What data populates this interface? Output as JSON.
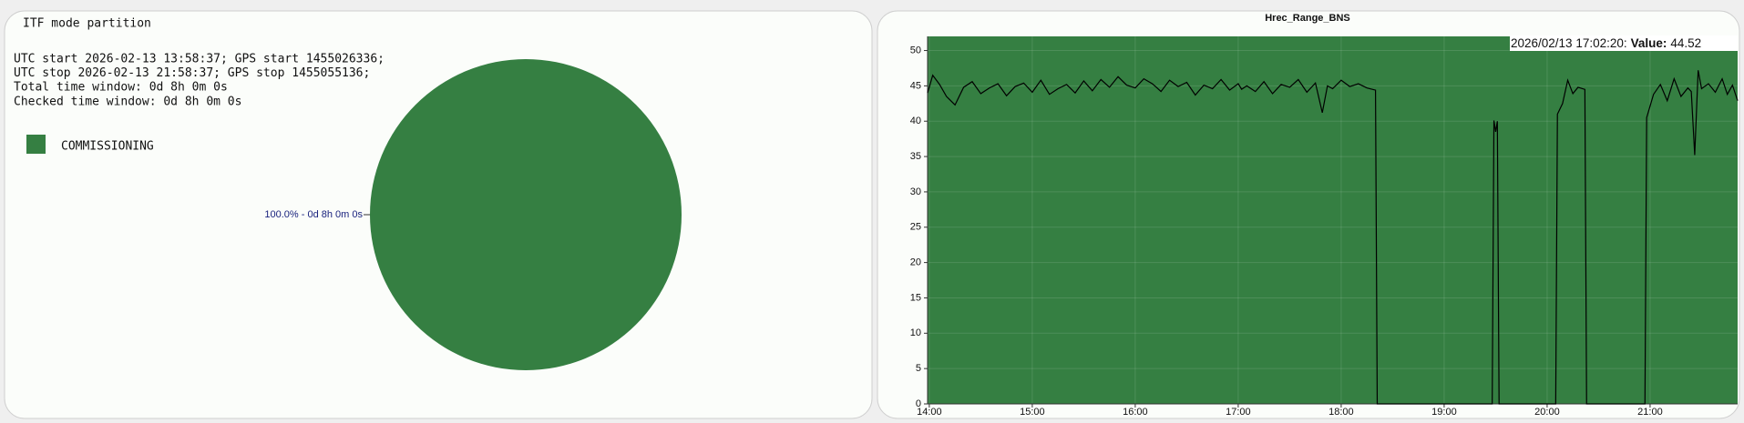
{
  "chart_data": [
    {
      "type": "pie",
      "title": "ITF mode partition",
      "text_lines": [
        "UTC start 2026-02-13 13:58:37; GPS start 1455026336;",
        "UTC stop 2026-02-13 21:58:37; GPS stop 1455055136;",
        "Total time window: 0d 8h 0m 0s",
        "Checked time window: 0d 8h 0m 0s"
      ],
      "categories": [
        "COMMISSIONING"
      ],
      "values": [
        100
      ],
      "value_labels": [
        "100.0% - 0d 8h 0m 0s"
      ],
      "colors": [
        "#357f42"
      ],
      "legend": "top-left"
    },
    {
      "type": "line",
      "title": "Hrec_Range_BNS",
      "x": [
        "13:59",
        "14:02",
        "14:06",
        "14:10",
        "14:15",
        "14:20",
        "14:25",
        "14:30",
        "14:35",
        "14:40",
        "14:45",
        "14:50",
        "14:55",
        "15:00",
        "15:05",
        "15:10",
        "15:15",
        "15:20",
        "15:25",
        "15:30",
        "15:35",
        "15:40",
        "15:45",
        "15:50",
        "15:55",
        "16:00",
        "16:05",
        "16:10",
        "16:15",
        "16:20",
        "16:25",
        "16:30",
        "16:35",
        "16:40",
        "16:45",
        "16:50",
        "16:55",
        "17:00",
        "17:02",
        "17:05",
        "17:10",
        "17:15",
        "17:20",
        "17:25",
        "17:30",
        "17:35",
        "17:40",
        "17:45",
        "17:49",
        "17:52",
        "17:55",
        "18:00",
        "18:05",
        "18:10",
        "18:15",
        "18:20",
        "18:21",
        "19:28",
        "19:29",
        "19:30",
        "19:31",
        "19:32",
        "20:05",
        "20:06",
        "20:09",
        "20:12",
        "20:15",
        "20:18",
        "20:22",
        "20:23",
        "20:57",
        "20:58",
        "21:02",
        "21:06",
        "21:10",
        "21:14",
        "21:18",
        "21:22",
        "21:24",
        "21:26",
        "21:28",
        "21:30",
        "21:34",
        "21:38",
        "21:42",
        "21:45",
        "21:48",
        "21:51"
      ],
      "series": [
        {
          "name": "Hrec_Range_BNS",
          "color": "#000000",
          "values": [
            44.0,
            46.5,
            45.2,
            43.5,
            42.3,
            44.8,
            45.6,
            43.9,
            44.7,
            45.3,
            43.6,
            44.9,
            45.4,
            44.1,
            45.8,
            43.8,
            44.6,
            45.2,
            44.0,
            45.7,
            44.3,
            45.9,
            44.8,
            46.3,
            45.1,
            44.7,
            46.0,
            45.3,
            44.2,
            45.8,
            44.9,
            45.5,
            43.7,
            45.1,
            44.6,
            45.9,
            44.4,
            45.3,
            44.52,
            45.0,
            44.2,
            45.6,
            43.9,
            45.2,
            44.8,
            45.9,
            44.1,
            45.4,
            41.2,
            45.0,
            44.6,
            45.8,
            44.9,
            45.3,
            44.7,
            44.4,
            0,
            0,
            40.1,
            38.5,
            40.0,
            0,
            0,
            41.0,
            42.5,
            45.8,
            43.9,
            44.8,
            44.5,
            0,
            0,
            40.5,
            43.8,
            45.2,
            42.9,
            46.0,
            43.5,
            44.7,
            44.2,
            35.2,
            47.2,
            44.6,
            45.3,
            44.1,
            46.0,
            43.8,
            45.1,
            42.9
          ]
        }
      ],
      "xlim": [
        "13:59",
        "21:51"
      ],
      "xticks": [
        "14:00",
        "15:00",
        "16:00",
        "17:00",
        "18:00",
        "19:00",
        "20:00",
        "21:00"
      ],
      "ylim": [
        0,
        52
      ],
      "yticks": [
        0,
        5,
        10,
        15,
        20,
        25,
        30,
        35,
        40,
        45,
        50
      ],
      "grid": true,
      "plot_background": "#357f42",
      "tooltip": {
        "time": "2026/02/13 17:02:20:",
        "label": "Value:",
        "value": 44.52
      }
    }
  ]
}
